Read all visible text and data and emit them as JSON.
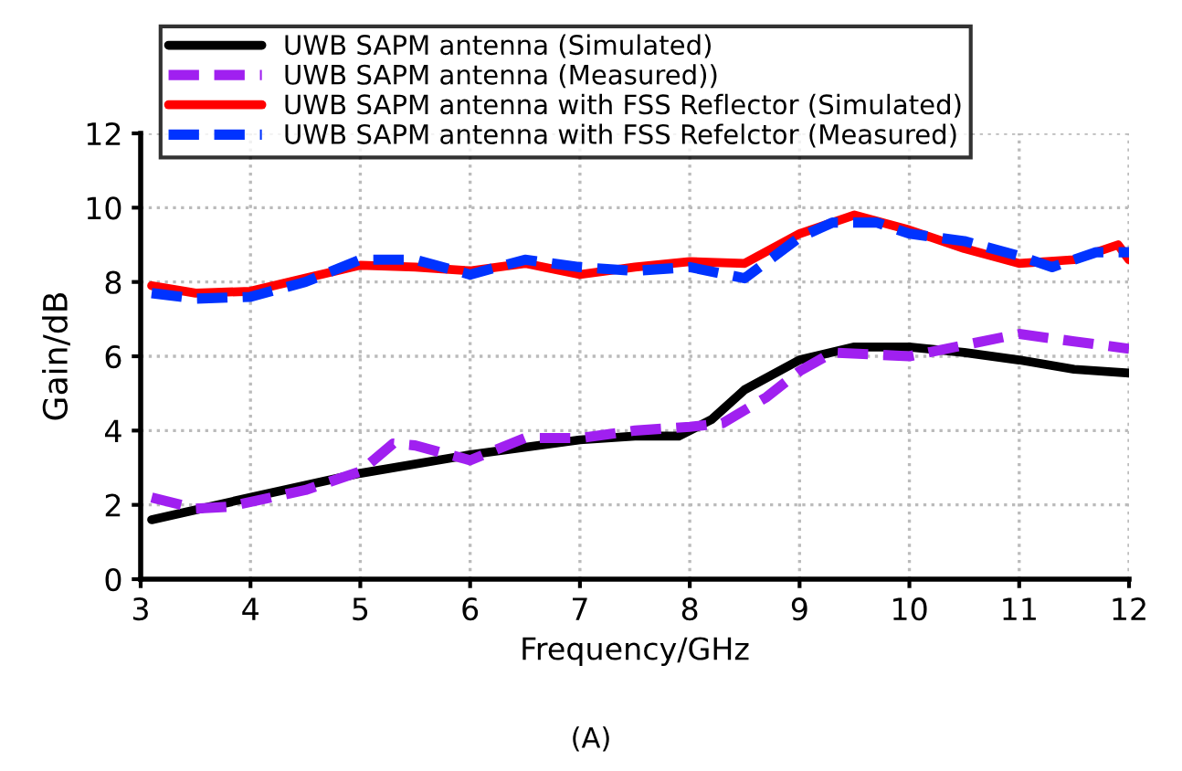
{
  "chart_data": {
    "type": "line",
    "xlabel": "Frequency/GHz",
    "ylabel": "Gain/dB",
    "annotations": [
      "(A)"
    ],
    "xlim": [
      3,
      12
    ],
    "ylim": [
      0,
      12
    ],
    "xticks": [
      3,
      4,
      5,
      6,
      7,
      8,
      9,
      10,
      11,
      12
    ],
    "yticks": [
      0,
      2,
      4,
      6,
      8,
      10,
      12
    ],
    "grid": true,
    "legend": "top",
    "marker": "none",
    "series": [
      {
        "name": "UWB SAPM antenna (Simulated)",
        "color": "#000000",
        "line_style": "solid",
        "x": [
          3.1,
          4,
          5,
          6,
          7,
          7.5,
          7.9,
          8.2,
          8.5,
          9,
          9.5,
          10,
          10.5,
          11,
          11.5,
          12
        ],
        "values": [
          1.6,
          2.2,
          2.85,
          3.35,
          3.75,
          3.85,
          3.85,
          4.3,
          5.1,
          5.9,
          6.25,
          6.25,
          6.1,
          5.9,
          5.65,
          5.55
        ]
      },
      {
        "name": "UWB SAPM antenna (Measured))",
        "color": "#a020f0",
        "line_style": "dashed",
        "x": [
          3.1,
          3.5,
          3.8,
          4.5,
          5,
          5.3,
          5.5,
          6,
          6.5,
          7,
          7.5,
          8,
          8.3,
          8.7,
          9,
          9.3,
          10,
          10.5,
          11,
          11.5,
          12
        ],
        "values": [
          2.2,
          1.9,
          1.95,
          2.4,
          2.9,
          3.65,
          3.6,
          3.2,
          3.8,
          3.8,
          4.0,
          4.1,
          4.2,
          4.9,
          5.6,
          6.1,
          6.0,
          6.3,
          6.6,
          6.4,
          6.2
        ]
      },
      {
        "name": "UWB SAPM antenna with FSS Reflector (Simulated)",
        "color": "#ff0000",
        "line_style": "solid",
        "x": [
          3.1,
          3.5,
          4,
          4.5,
          5,
          5.5,
          6,
          6.5,
          7,
          7.5,
          8,
          8.5,
          9,
          9.5,
          10,
          10.5,
          11,
          11.5,
          11.9,
          12
        ],
        "values": [
          7.9,
          7.7,
          7.75,
          8.1,
          8.45,
          8.4,
          8.3,
          8.5,
          8.2,
          8.4,
          8.55,
          8.5,
          9.3,
          9.8,
          9.4,
          8.9,
          8.5,
          8.6,
          9.0,
          8.6
        ]
      },
      {
        "name": "UWB SAPM antenna with FSS Refelctor (Measured)",
        "color": "#0033ff",
        "line_style": "dashed",
        "x": [
          3.1,
          3.5,
          4,
          4.5,
          5,
          5.5,
          6,
          6.5,
          7,
          7.5,
          8,
          8.5,
          9,
          9.3,
          9.7,
          10,
          10.5,
          11,
          11.3,
          11.7,
          12
        ],
        "values": [
          7.7,
          7.55,
          7.6,
          8.0,
          8.6,
          8.6,
          8.2,
          8.6,
          8.4,
          8.3,
          8.4,
          8.1,
          9.2,
          9.6,
          9.6,
          9.3,
          9.1,
          8.7,
          8.4,
          8.8,
          8.8
        ]
      }
    ]
  }
}
